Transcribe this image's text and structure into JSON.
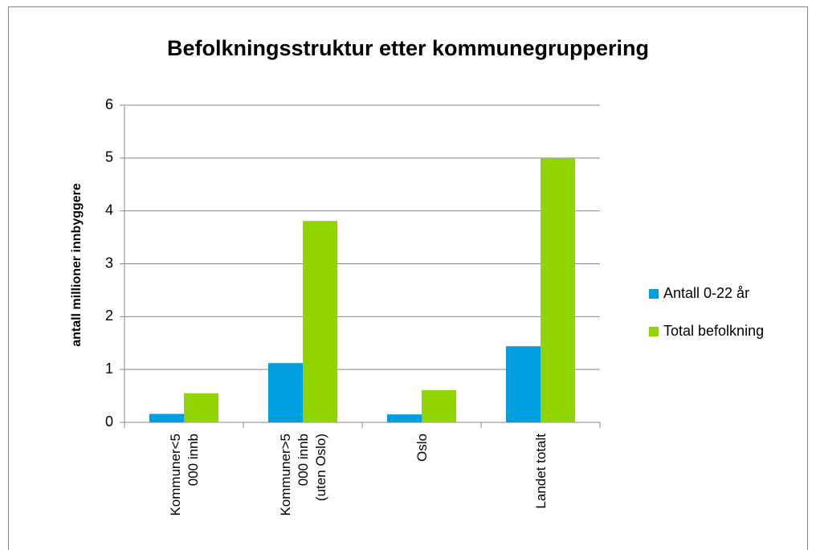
{
  "chart_data": {
    "type": "bar",
    "title": "Befolkningsstruktur etter kommunegruppering",
    "ylabel": "antall millioner innbyggere",
    "categories": [
      "Kommuner<5 000 innb",
      "Kommuner>5 000 innb (uten Oslo)",
      "Oslo",
      "Landet totalt"
    ],
    "series": [
      {
        "name": "Antall 0-22 år",
        "color": "#00a0e0",
        "values": [
          0.16,
          1.12,
          0.15,
          1.44
        ]
      },
      {
        "name": "Total befolkning",
        "color": "#92d400",
        "values": [
          0.55,
          3.81,
          0.61,
          4.99
        ]
      }
    ],
    "ylim": [
      0,
      6
    ],
    "yticks": [
      0,
      1,
      2,
      3,
      4,
      5,
      6
    ],
    "grid": true,
    "legend": "right"
  }
}
